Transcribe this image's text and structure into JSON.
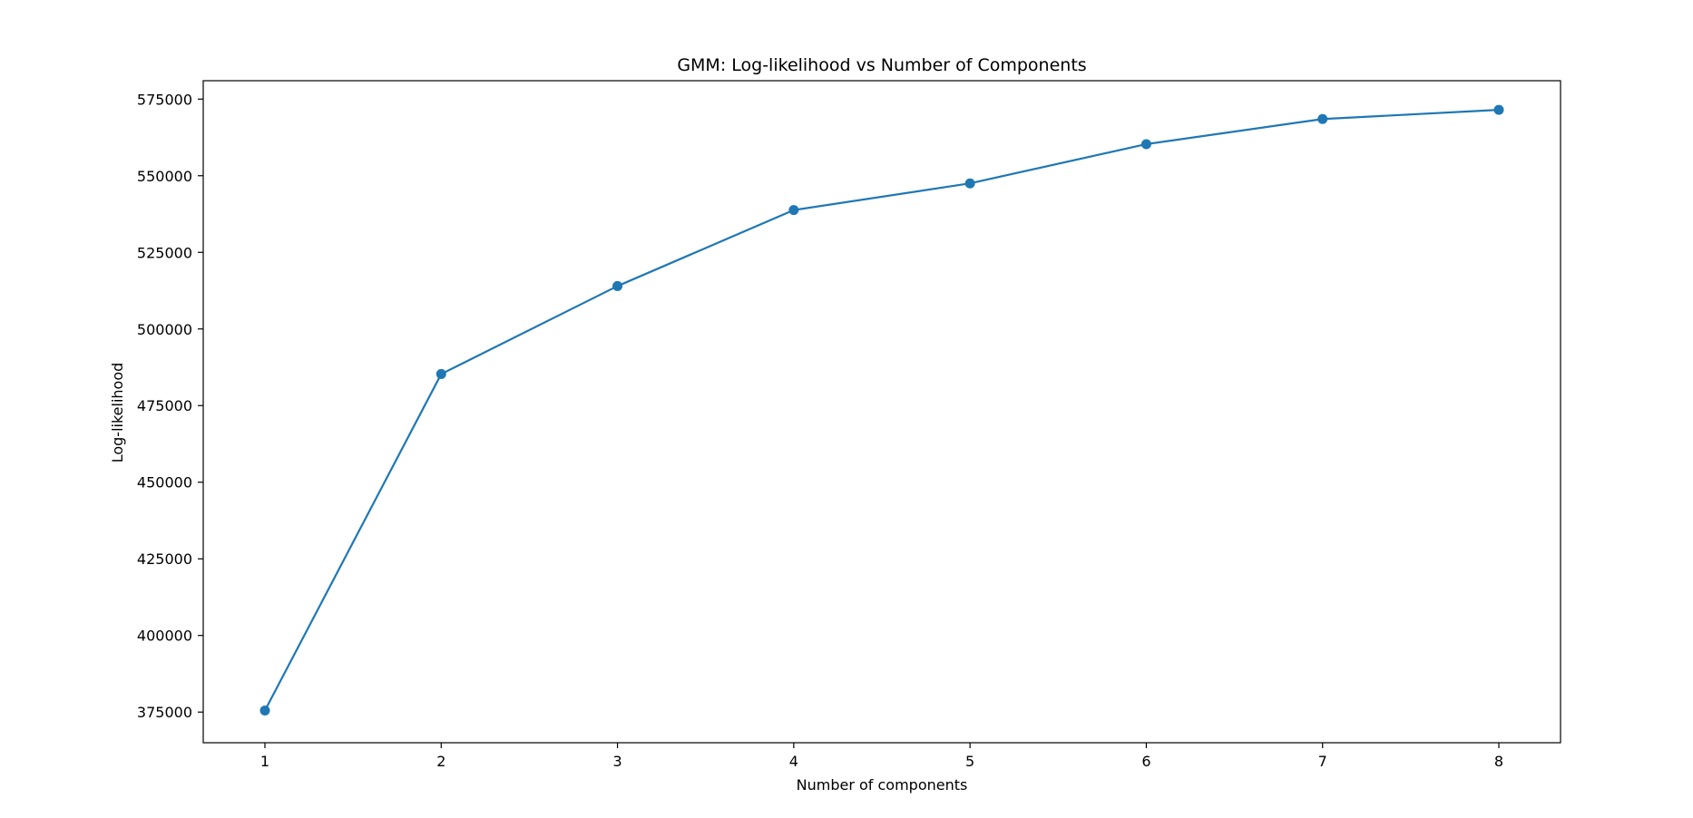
{
  "chart_data": {
    "type": "line",
    "title": "GMM: Log-likelihood vs Number of Components",
    "xlabel": "Number of components",
    "ylabel": "Log-likelihood",
    "x": [
      1,
      2,
      3,
      4,
      5,
      6,
      7,
      8
    ],
    "x_ticks": [
      "1",
      "2",
      "3",
      "4",
      "5",
      "6",
      "7",
      "8"
    ],
    "xlim": [
      0.65,
      8.35
    ],
    "y_ticks": [
      "375000",
      "400000",
      "425000",
      "450000",
      "475000",
      "500000",
      "525000",
      "550000",
      "575000"
    ],
    "y_tick_values": [
      375000,
      400000,
      425000,
      450000,
      475000,
      500000,
      525000,
      550000,
      575000
    ],
    "ylim": [
      365000,
      581000
    ],
    "grid": false,
    "series": [
      {
        "color": "#1f77b4",
        "marker": "circle",
        "values": [
          375500,
          485300,
          514000,
          538800,
          547500,
          560300,
          568500,
          571500
        ]
      }
    ]
  }
}
